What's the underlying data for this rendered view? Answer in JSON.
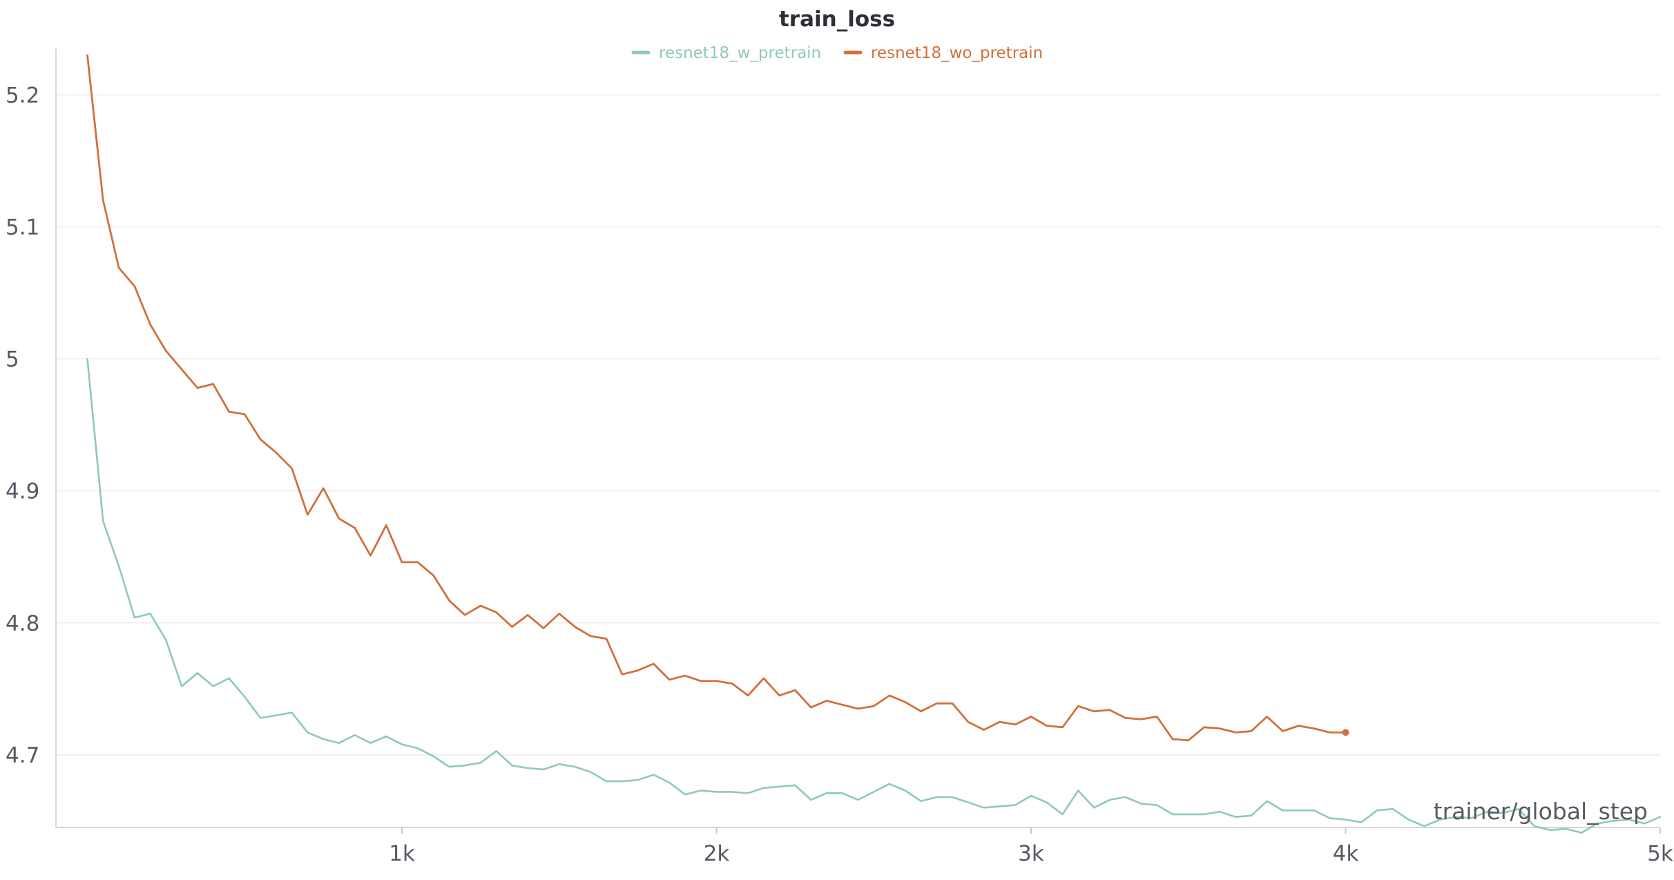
{
  "chart_data": {
    "type": "line",
    "title": "train_loss",
    "xlabel": "trainer/global_step",
    "ylabel": "",
    "xlim": [
      -100,
      5000
    ],
    "ylim": [
      4.645,
      5.23
    ],
    "x_ticks": [
      1000,
      2000,
      3000,
      4000,
      5000
    ],
    "x_tick_labels": [
      "1k",
      "2k",
      "3k",
      "4k",
      "5k"
    ],
    "y_ticks": [
      4.7,
      4.8,
      4.9,
      5.0,
      5.1,
      5.2
    ],
    "y_tick_labels": [
      "4.7",
      "4.8",
      "4.9",
      "5",
      "5.1",
      "5.2"
    ],
    "grid": true,
    "legend_position": "top-center",
    "series": [
      {
        "name": "resnet18_w_pretrain",
        "color": "#8ecab5",
        "x": [
          0,
          50,
          100,
          150,
          200,
          250,
          300,
          350,
          400,
          450,
          500,
          550,
          600,
          650,
          700,
          750,
          800,
          850,
          900,
          950,
          1000,
          1050,
          1100,
          1150,
          1200,
          1250,
          1300,
          1350,
          1400,
          1450,
          1500,
          1550,
          1600,
          1650,
          1700,
          1750,
          1800,
          1850,
          1900,
          1950,
          2000,
          2050,
          2100,
          2150,
          2200,
          2250,
          2300,
          2350,
          2400,
          2450,
          2500,
          2550,
          2600,
          2650,
          2700,
          2750,
          2800,
          2850,
          2900,
          2950,
          3000,
          3050,
          3100,
          3150,
          3200,
          3250,
          3300,
          3350,
          3400,
          3450,
          3500,
          3550,
          3600,
          3650,
          3700,
          3750,
          3800,
          3850,
          3900,
          3950,
          4000,
          4050,
          4100,
          4150,
          4200,
          4250,
          4300,
          4350,
          4400,
          4450,
          4500,
          4550,
          4600,
          4650,
          4700,
          4750,
          4800,
          4850,
          4900,
          4950,
          5000
        ],
        "values": [
          5.0,
          4.877,
          4.843,
          4.804,
          4.807,
          4.787,
          4.752,
          4.762,
          4.752,
          4.758,
          4.744,
          4.728,
          4.73,
          4.732,
          4.717,
          4.712,
          4.709,
          4.715,
          4.709,
          4.714,
          4.708,
          4.705,
          4.699,
          4.691,
          4.692,
          4.694,
          4.703,
          4.692,
          4.69,
          4.689,
          4.693,
          4.691,
          4.687,
          4.68,
          4.68,
          4.681,
          4.685,
          4.679,
          4.67,
          4.673,
          4.672,
          4.672,
          4.671,
          4.675,
          4.676,
          4.677,
          4.666,
          4.671,
          4.671,
          4.666,
          4.672,
          4.678,
          4.673,
          4.665,
          4.668,
          4.668,
          4.664,
          4.66,
          4.661,
          4.662,
          4.669,
          4.664,
          4.655,
          4.673,
          4.66,
          4.666,
          4.668,
          4.663,
          4.662,
          4.655,
          4.655,
          4.655,
          4.657,
          4.653,
          4.654,
          4.665,
          4.658,
          4.658,
          4.658,
          4.652,
          4.651,
          4.649,
          4.658,
          4.659,
          4.651,
          4.646,
          4.651,
          4.653,
          4.652,
          4.657,
          4.656,
          4.659,
          4.646,
          4.643,
          4.644,
          4.641,
          4.648,
          4.65,
          4.651,
          4.648,
          4.653
        ]
      },
      {
        "name": "resnet18_wo_pretrain",
        "color": "#d0703c",
        "x": [
          0,
          50,
          100,
          150,
          200,
          250,
          300,
          350,
          400,
          450,
          500,
          550,
          600,
          650,
          700,
          750,
          800,
          850,
          900,
          950,
          1000,
          1050,
          1100,
          1150,
          1200,
          1250,
          1300,
          1350,
          1400,
          1450,
          1500,
          1550,
          1600,
          1650,
          1700,
          1750,
          1800,
          1850,
          1900,
          1950,
          2000,
          2050,
          2100,
          2150,
          2200,
          2250,
          2300,
          2350,
          2400,
          2450,
          2500,
          2550,
          2600,
          2650,
          2700,
          2750,
          2800,
          2850,
          2900,
          2950,
          3000,
          3050,
          3100,
          3150,
          3200,
          3250,
          3300,
          3350,
          3400,
          3450,
          3500,
          3550,
          3600,
          3650,
          3700,
          3750,
          3800,
          3850,
          3900,
          3950,
          4000
        ],
        "values": [
          5.23,
          5.12,
          5.069,
          5.055,
          5.026,
          5.006,
          4.992,
          4.978,
          4.981,
          4.96,
          4.958,
          4.939,
          4.929,
          4.917,
          4.882,
          4.902,
          4.879,
          4.872,
          4.851,
          4.874,
          4.846,
          4.846,
          4.836,
          4.817,
          4.806,
          4.813,
          4.808,
          4.797,
          4.806,
          4.796,
          4.807,
          4.797,
          4.79,
          4.788,
          4.761,
          4.764,
          4.769,
          4.757,
          4.76,
          4.756,
          4.756,
          4.754,
          4.745,
          4.758,
          4.745,
          4.749,
          4.736,
          4.741,
          4.738,
          4.735,
          4.737,
          4.745,
          4.74,
          4.733,
          4.739,
          4.739,
          4.725,
          4.719,
          4.725,
          4.723,
          4.729,
          4.722,
          4.721,
          4.737,
          4.733,
          4.734,
          4.728,
          4.727,
          4.729,
          4.712,
          4.711,
          4.721,
          4.72,
          4.717,
          4.718,
          4.729,
          4.718,
          4.722,
          4.72,
          4.717,
          4.717
        ]
      }
    ]
  }
}
